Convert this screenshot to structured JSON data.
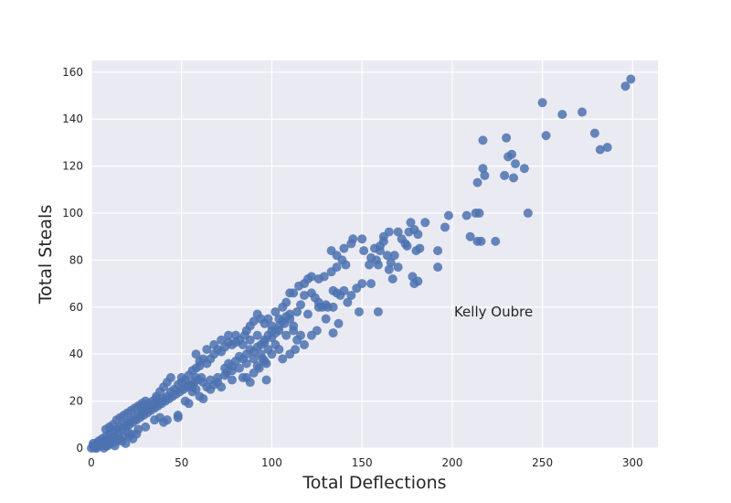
{
  "chart_data": {
    "type": "scatter",
    "title": "",
    "xlabel": "Total Deflections",
    "ylabel": "Total Steals",
    "xlim": [
      0,
      314
    ],
    "ylim": [
      0,
      165
    ],
    "xticks": [
      0,
      50,
      100,
      150,
      200,
      250,
      300
    ],
    "yticks": [
      0,
      20,
      40,
      60,
      80,
      100,
      120,
      140,
      160
    ],
    "grid": true,
    "colors": {
      "point": "#4c72b0",
      "background": "#eaeaf2",
      "grid": "#ffffff",
      "text": "#262626"
    },
    "annotations": [
      {
        "text": "Kelly Oubre",
        "x": 197,
        "y": 58
      }
    ],
    "points": [
      [
        299,
        157
      ],
      [
        296,
        154
      ],
      [
        250,
        147
      ],
      [
        261,
        142
      ],
      [
        272,
        143
      ],
      [
        279,
        134
      ],
      [
        252,
        133
      ],
      [
        282,
        127
      ],
      [
        286,
        128
      ],
      [
        217,
        131
      ],
      [
        230,
        132
      ],
      [
        231,
        124
      ],
      [
        233,
        125
      ],
      [
        235,
        121
      ],
      [
        240,
        119
      ],
      [
        229,
        116
      ],
      [
        234,
        115
      ],
      [
        217,
        119
      ],
      [
        218,
        116
      ],
      [
        214,
        113
      ],
      [
        213,
        100
      ],
      [
        215,
        100
      ],
      [
        242,
        100
      ],
      [
        208,
        99
      ],
      [
        198,
        99
      ],
      [
        196,
        94
      ],
      [
        185,
        96
      ],
      [
        177,
        96
      ],
      [
        179,
        93
      ],
      [
        181,
        91
      ],
      [
        210,
        90
      ],
      [
        214,
        88
      ],
      [
        216,
        88
      ],
      [
        224,
        88
      ],
      [
        176,
        92
      ],
      [
        170,
        92
      ],
      [
        172,
        89
      ],
      [
        174,
        87
      ],
      [
        165,
        92
      ],
      [
        162,
        90
      ],
      [
        160,
        86
      ],
      [
        162,
        88
      ],
      [
        150,
        89
      ],
      [
        145,
        89
      ],
      [
        144,
        87
      ],
      [
        192,
        84
      ],
      [
        192,
        77
      ],
      [
        182,
        85
      ],
      [
        180,
        84
      ],
      [
        175,
        86
      ],
      [
        168,
        82
      ],
      [
        164,
        82
      ],
      [
        166,
        79
      ],
      [
        160,
        84
      ],
      [
        157,
        85
      ],
      [
        151,
        84
      ],
      [
        155,
        81
      ],
      [
        140,
        85
      ],
      [
        136,
        82
      ],
      [
        133,
        84
      ],
      [
        139,
        80
      ],
      [
        141,
        78
      ],
      [
        136,
        77
      ],
      [
        170,
        77
      ],
      [
        165,
        76
      ],
      [
        158,
        80
      ],
      [
        159,
        78
      ],
      [
        154,
        78
      ],
      [
        178,
        73
      ],
      [
        181,
        71
      ],
      [
        179,
        70
      ],
      [
        167,
        72
      ],
      [
        155,
        70
      ],
      [
        150,
        70
      ],
      [
        147,
        68
      ],
      [
        159,
        58
      ],
      [
        133,
        75
      ],
      [
        129,
        73
      ],
      [
        126,
        72
      ],
      [
        122,
        73
      ],
      [
        120,
        72
      ],
      [
        118,
        70
      ],
      [
        115,
        69
      ],
      [
        112,
        66
      ],
      [
        110,
        66
      ],
      [
        118,
        65
      ],
      [
        122,
        66
      ],
      [
        124,
        64
      ],
      [
        126,
        62
      ],
      [
        130,
        61
      ],
      [
        134,
        67
      ],
      [
        136,
        66
      ],
      [
        138,
        65
      ],
      [
        140,
        67
      ],
      [
        144,
        65
      ],
      [
        142,
        62
      ],
      [
        128,
        60
      ],
      [
        126,
        60
      ],
      [
        131,
        60
      ],
      [
        134,
        60
      ],
      [
        108,
        62
      ],
      [
        106,
        60
      ],
      [
        102,
        58
      ],
      [
        104,
        55
      ],
      [
        110,
        57
      ],
      [
        114,
        58
      ],
      [
        116,
        61
      ],
      [
        120,
        57
      ],
      [
        107,
        53
      ],
      [
        112,
        52
      ],
      [
        125,
        50
      ],
      [
        122,
        48
      ],
      [
        134,
        49
      ],
      [
        137,
        53
      ],
      [
        130,
        55
      ],
      [
        108,
        48
      ],
      [
        104,
        50
      ],
      [
        100,
        52
      ],
      [
        98,
        55
      ],
      [
        96,
        53
      ],
      [
        94,
        55
      ],
      [
        92,
        57
      ],
      [
        90,
        54
      ],
      [
        88,
        52
      ],
      [
        86,
        50
      ],
      [
        85,
        48
      ],
      [
        82,
        46
      ],
      [
        80,
        48
      ],
      [
        78,
        44
      ],
      [
        76,
        45
      ],
      [
        74,
        43
      ],
      [
        72,
        41
      ],
      [
        70,
        42
      ],
      [
        68,
        40
      ],
      [
        66,
        38
      ],
      [
        64,
        36
      ],
      [
        62,
        38
      ],
      [
        60,
        35
      ],
      [
        58,
        34
      ],
      [
        56,
        33
      ],
      [
        58,
        40
      ],
      [
        60,
        37
      ],
      [
        64,
        42
      ],
      [
        68,
        44
      ],
      [
        72,
        46
      ],
      [
        76,
        48
      ],
      [
        80,
        45
      ],
      [
        84,
        44
      ],
      [
        88,
        46
      ],
      [
        92,
        48
      ],
      [
        96,
        45
      ],
      [
        100,
        47
      ],
      [
        102,
        44
      ],
      [
        98,
        42
      ],
      [
        94,
        40
      ],
      [
        90,
        38
      ],
      [
        86,
        36
      ],
      [
        82,
        34
      ],
      [
        78,
        33
      ],
      [
        74,
        31
      ],
      [
        70,
        30
      ],
      [
        66,
        29
      ],
      [
        62,
        28
      ],
      [
        58,
        30
      ],
      [
        54,
        31
      ],
      [
        50,
        30
      ],
      [
        48,
        27
      ],
      [
        46,
        25
      ],
      [
        44,
        24
      ],
      [
        42,
        22
      ],
      [
        40,
        21
      ],
      [
        38,
        20
      ],
      [
        36,
        19
      ],
      [
        34,
        18
      ],
      [
        32,
        17
      ],
      [
        30,
        16
      ],
      [
        28,
        15
      ],
      [
        26,
        14
      ],
      [
        24,
        13
      ],
      [
        22,
        12
      ],
      [
        20,
        11
      ],
      [
        18,
        10
      ],
      [
        16,
        9
      ],
      [
        14,
        8
      ],
      [
        12,
        7
      ],
      [
        10,
        6
      ],
      [
        8,
        5
      ],
      [
        6,
        4
      ],
      [
        4,
        3
      ],
      [
        2,
        1
      ],
      [
        3,
        2
      ],
      [
        5,
        1
      ],
      [
        7,
        3
      ],
      [
        9,
        2
      ],
      [
        11,
        4
      ],
      [
        13,
        5
      ],
      [
        15,
        6
      ],
      [
        17,
        8
      ],
      [
        19,
        9
      ],
      [
        21,
        10
      ],
      [
        23,
        11
      ],
      [
        25,
        12
      ],
      [
        27,
        13
      ],
      [
        29,
        14
      ],
      [
        31,
        15
      ],
      [
        33,
        16
      ],
      [
        35,
        17
      ],
      [
        37,
        18
      ],
      [
        39,
        19
      ],
      [
        41,
        20
      ],
      [
        43,
        21
      ],
      [
        45,
        22
      ],
      [
        47,
        23
      ],
      [
        49,
        24
      ],
      [
        51,
        25
      ],
      [
        53,
        26
      ],
      [
        55,
        27
      ],
      [
        57,
        28
      ],
      [
        59,
        29
      ],
      [
        61,
        30
      ],
      [
        36,
        22
      ],
      [
        38,
        24
      ],
      [
        40,
        26
      ],
      [
        42,
        28
      ],
      [
        44,
        30
      ],
      [
        30,
        20
      ],
      [
        28,
        19
      ],
      [
        26,
        18
      ],
      [
        24,
        17
      ],
      [
        22,
        16
      ],
      [
        20,
        15
      ],
      [
        18,
        14
      ],
      [
        16,
        13
      ],
      [
        14,
        12
      ],
      [
        12,
        10
      ],
      [
        10,
        9
      ],
      [
        8,
        8
      ],
      [
        35,
        12
      ],
      [
        38,
        13
      ],
      [
        40,
        11
      ],
      [
        42,
        12
      ],
      [
        48,
        14
      ],
      [
        48,
        13
      ],
      [
        26,
        8
      ],
      [
        30,
        9
      ],
      [
        22,
        6
      ],
      [
        18,
        5
      ],
      [
        20,
        7
      ],
      [
        14,
        3
      ],
      [
        12,
        4
      ],
      [
        10,
        2
      ],
      [
        8,
        1
      ],
      [
        6,
        2
      ],
      [
        4,
        1
      ],
      [
        2,
        0
      ],
      [
        1,
        1
      ],
      [
        0,
        0
      ],
      [
        1,
        2
      ],
      [
        3,
        0
      ],
      [
        5,
        3
      ],
      [
        7,
        0
      ],
      [
        9,
        1
      ],
      [
        11,
        2
      ],
      [
        13,
        1
      ],
      [
        15,
        4
      ],
      [
        17,
        3
      ],
      [
        19,
        2
      ],
      [
        21,
        5
      ],
      [
        23,
        4
      ],
      [
        25,
        6
      ],
      [
        34,
        20
      ],
      [
        36,
        21
      ],
      [
        32,
        19
      ],
      [
        30,
        18
      ],
      [
        28,
        17
      ],
      [
        50,
        28
      ],
      [
        52,
        29
      ],
      [
        54,
        27
      ],
      [
        56,
        26
      ],
      [
        58,
        25
      ],
      [
        52,
        20
      ],
      [
        54,
        19
      ],
      [
        56,
        24
      ],
      [
        60,
        22
      ],
      [
        62,
        21
      ],
      [
        64,
        26
      ],
      [
        66,
        25
      ],
      [
        68,
        27
      ],
      [
        70,
        28
      ],
      [
        72,
        26
      ],
      [
        74,
        34
      ],
      [
        76,
        36
      ],
      [
        78,
        35
      ],
      [
        80,
        37
      ],
      [
        82,
        39
      ],
      [
        84,
        38
      ],
      [
        86,
        40
      ],
      [
        88,
        42
      ],
      [
        90,
        41
      ],
      [
        92,
        43
      ],
      [
        94,
        44
      ],
      [
        96,
        46
      ],
      [
        98,
        48
      ],
      [
        100,
        50
      ],
      [
        102,
        49
      ],
      [
        104,
        52
      ],
      [
        106,
        54
      ],
      [
        108,
        56
      ],
      [
        110,
        55
      ],
      [
        112,
        50
      ],
      [
        86,
        30
      ],
      [
        90,
        32
      ],
      [
        92,
        35
      ],
      [
        95,
        38
      ],
      [
        97,
        29
      ],
      [
        96,
        37
      ],
      [
        88,
        28
      ],
      [
        84,
        30
      ],
      [
        78,
        29
      ],
      [
        75,
        32
      ],
      [
        114,
        46
      ],
      [
        116,
        48
      ],
      [
        118,
        44
      ],
      [
        113,
        42
      ],
      [
        110,
        40
      ],
      [
        104,
        42
      ],
      [
        106,
        38
      ],
      [
        100,
        40
      ],
      [
        97,
        36
      ],
      [
        93,
        34
      ]
    ]
  }
}
